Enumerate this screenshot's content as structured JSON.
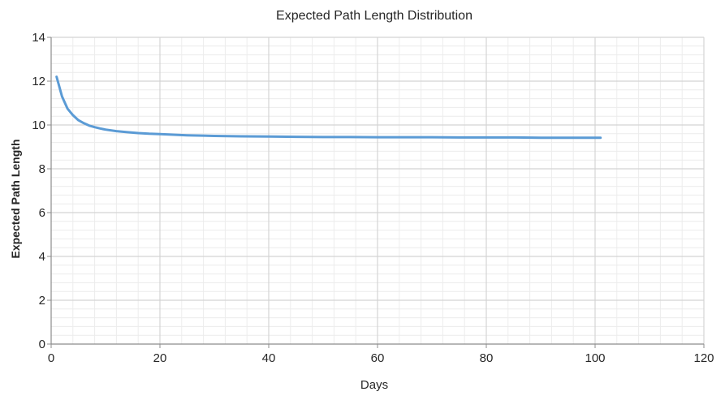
{
  "chart_data": {
    "type": "line",
    "title": "Expected Path Length Distribution",
    "xlabel": "Days",
    "ylabel": "Expected Path Length",
    "xlim": [
      0,
      120
    ],
    "ylim": [
      0,
      14
    ],
    "x_ticks": [
      0,
      20,
      40,
      60,
      80,
      100,
      120
    ],
    "y_ticks": [
      0,
      2,
      4,
      6,
      8,
      10,
      12,
      14
    ],
    "x_tick_labels": [
      "0",
      "20",
      "40",
      "60",
      "80",
      "100",
      "120"
    ],
    "y_tick_labels": [
      "0",
      "2",
      "4",
      "6",
      "8",
      "10",
      "12",
      "14"
    ],
    "grid": true,
    "minor_grid": true,
    "legend": "none",
    "series": [
      {
        "color": "#5b9bd5",
        "x": [
          1,
          2,
          3,
          4,
          5,
          6,
          7,
          8,
          9,
          10,
          12,
          14,
          16,
          18,
          20,
          25,
          30,
          35,
          40,
          45,
          50,
          55,
          60,
          65,
          70,
          75,
          80,
          85,
          90,
          95,
          100,
          101
        ],
        "y": [
          12.2,
          11.3,
          10.75,
          10.45,
          10.22,
          10.08,
          9.97,
          9.9,
          9.84,
          9.79,
          9.72,
          9.67,
          9.63,
          9.6,
          9.58,
          9.53,
          9.5,
          9.48,
          9.47,
          9.46,
          9.45,
          9.45,
          9.44,
          9.44,
          9.44,
          9.43,
          9.43,
          9.43,
          9.42,
          9.42,
          9.42,
          9.42
        ]
      }
    ]
  }
}
